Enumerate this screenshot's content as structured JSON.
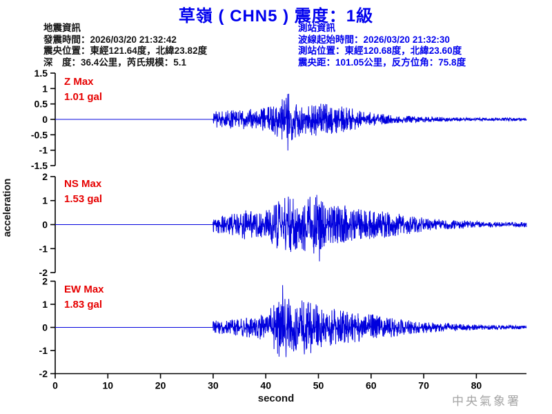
{
  "title": "草嶺 ( CHN5 )  震度：1級",
  "info_left": {
    "lines": [
      "地震資訊",
      "發震時間：2026/03/20 21:32:42",
      "震央位置：東經121.64度，北緯23.82度",
      "深　度：36.4公里，芮氏規模：5.1"
    ]
  },
  "info_right": {
    "lines": [
      "測站資訊",
      "波線起始時間：2026/03/20 21:32:30",
      "測站位置：東經120.68度，北緯23.60度",
      "震央距：101.05公里，反方位角：75.8度"
    ]
  },
  "ylabel": "acceleration",
  "xlabel": "second",
  "watermark": "中央氣象署",
  "colors": {
    "title_blue": "#0000EE",
    "waveform_blue": "#0000DD",
    "max_label_red": "#E60000",
    "watermark_gray": "#A5A5A5",
    "axis_black": "#000000"
  },
  "chart_data": {
    "type": "line",
    "description": "Three-component strong-motion seismograms (Z / NS / EW acceleration vs time)",
    "x_unit": "second",
    "xlim": [
      0,
      89.5
    ],
    "xticks": [
      0,
      10,
      20,
      30,
      40,
      50,
      60,
      70,
      80
    ],
    "event_start_s": 30,
    "panels": [
      {
        "id": "Z",
        "max_label": "Z Max",
        "max_value": 1.01,
        "max_value_label": "1.01 gal",
        "ylim": [
          -1.5,
          1.5
        ],
        "yticks": [
          1.5,
          1,
          0.5,
          0,
          -0.5,
          -1,
          -1.5
        ],
        "peak_time_s": 44.2,
        "peak_sign": -1,
        "seed": 7,
        "envelope": [
          [
            0,
            0
          ],
          [
            29.95,
            0
          ],
          [
            30,
            0.22
          ],
          [
            32,
            0.25
          ],
          [
            35,
            0.27
          ],
          [
            38,
            0.3
          ],
          [
            41,
            0.38
          ],
          [
            43,
            0.6
          ],
          [
            44,
            0.85
          ],
          [
            45,
            0.6
          ],
          [
            47,
            0.45
          ],
          [
            50,
            0.48
          ],
          [
            53,
            0.4
          ],
          [
            56,
            0.33
          ],
          [
            58,
            0.25
          ],
          [
            61,
            0.17
          ],
          [
            64,
            0.12
          ],
          [
            68,
            0.09
          ],
          [
            72,
            0.07
          ],
          [
            78,
            0.05
          ],
          [
            84,
            0.045
          ],
          [
            89.5,
            0.04
          ]
        ]
      },
      {
        "id": "NS",
        "max_label": "NS Max",
        "max_value": 1.53,
        "max_value_label": "1.53 gal",
        "ylim": [
          -2,
          2
        ],
        "yticks": [
          2,
          1,
          0,
          -1,
          -2
        ],
        "peak_time_s": 50.2,
        "peak_sign": -1,
        "seed": 13,
        "envelope": [
          [
            0,
            0
          ],
          [
            29.95,
            0
          ],
          [
            30,
            0.3
          ],
          [
            32,
            0.33
          ],
          [
            34,
            0.4
          ],
          [
            36,
            0.55
          ],
          [
            38,
            0.45
          ],
          [
            40,
            0.5
          ],
          [
            42,
            0.85
          ],
          [
            44,
            1.05
          ],
          [
            46,
            0.95
          ],
          [
            48,
            1.0
          ],
          [
            50,
            1.1
          ],
          [
            51,
            0.85
          ],
          [
            53,
            0.7
          ],
          [
            55,
            0.72
          ],
          [
            57,
            0.6
          ],
          [
            59,
            0.55
          ],
          [
            61,
            0.5
          ],
          [
            63,
            0.48
          ],
          [
            65,
            0.4
          ],
          [
            67,
            0.35
          ],
          [
            69,
            0.28
          ],
          [
            71,
            0.22
          ],
          [
            74,
            0.18
          ],
          [
            77,
            0.15
          ],
          [
            80,
            0.12
          ],
          [
            84,
            0.1
          ],
          [
            89.5,
            0.09
          ]
        ]
      },
      {
        "id": "EW",
        "max_label": "EW Max",
        "max_value": 1.83,
        "max_value_label": "1.83 gal",
        "ylim": [
          -2,
          2
        ],
        "yticks": [
          2,
          1,
          0,
          -1,
          -2
        ],
        "peak_time_s": 43.2,
        "peak_sign": 1,
        "seed": 29,
        "envelope": [
          [
            0,
            0
          ],
          [
            29.95,
            0
          ],
          [
            30,
            0.25
          ],
          [
            32,
            0.28
          ],
          [
            34,
            0.3
          ],
          [
            36,
            0.35
          ],
          [
            38,
            0.42
          ],
          [
            40,
            0.55
          ],
          [
            42,
            0.95
          ],
          [
            43,
            1.25
          ],
          [
            44,
            1.15
          ],
          [
            45,
            0.95
          ],
          [
            46,
            1.0
          ],
          [
            48,
            1.05
          ],
          [
            50,
            0.85
          ],
          [
            52,
            0.75
          ],
          [
            54,
            0.65
          ],
          [
            56,
            0.6
          ],
          [
            58,
            0.55
          ],
          [
            60,
            0.5
          ],
          [
            62,
            0.42
          ],
          [
            64,
            0.38
          ],
          [
            66,
            0.3
          ],
          [
            68,
            0.25
          ],
          [
            71,
            0.2
          ],
          [
            74,
            0.16
          ],
          [
            78,
            0.12
          ],
          [
            82,
            0.09
          ],
          [
            86,
            0.08
          ],
          [
            89.5,
            0.07
          ]
        ]
      }
    ]
  }
}
